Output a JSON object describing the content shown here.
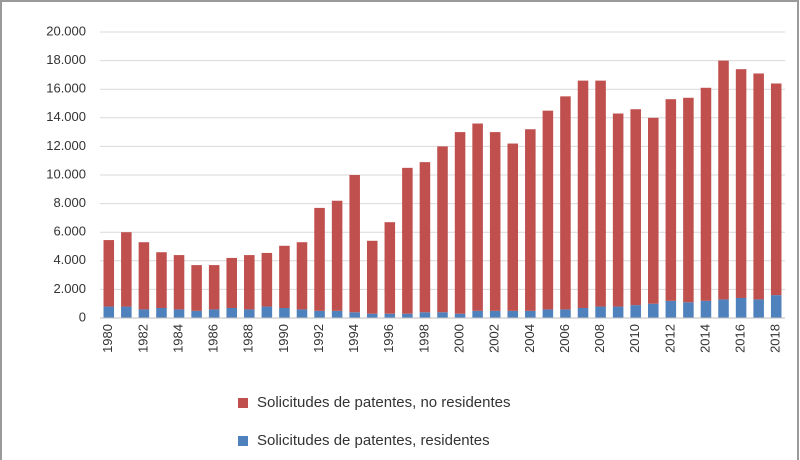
{
  "chart_data": {
    "type": "stacked_bar",
    "categories": [
      "1980",
      null,
      "1982",
      null,
      "1984",
      null,
      "1986",
      null,
      "1988",
      null,
      "1990",
      null,
      "1992",
      null,
      "1994",
      null,
      "1996",
      null,
      "1998",
      null,
      "2000",
      null,
      "2002",
      null,
      "2004",
      null,
      "2006",
      null,
      "2008",
      null,
      "2010",
      null,
      "2012",
      null,
      "2014",
      null,
      "2016",
      null,
      "2018"
    ],
    "series": [
      {
        "name": "Solicitudes de patentes, residentes",
        "color": "#4f81bd",
        "values": [
          800,
          800,
          600,
          700,
          600,
          500,
          600,
          700,
          600,
          800,
          700,
          600,
          500,
          500,
          400,
          300,
          300,
          300,
          400,
          400,
          300,
          500,
          500,
          500,
          500,
          600,
          600,
          700,
          800,
          800,
          900,
          1000,
          1200,
          1100,
          1200,
          1300,
          1400,
          1300,
          1600
        ]
      },
      {
        "name": "Solicitudes de patentes, no residentes",
        "color": "#c0504d",
        "values": [
          4650,
          5200,
          4700,
          3900,
          3800,
          3200,
          3100,
          3500,
          3800,
          3750,
          4350,
          4700,
          7200,
          7700,
          9600,
          5100,
          6400,
          10200,
          10500,
          11600,
          12700,
          13100,
          12500,
          11700,
          12700,
          13900,
          14900,
          15900,
          15800,
          13500,
          13700,
          13000,
          14100,
          14300,
          14900,
          16700,
          16000,
          15800,
          14800
        ]
      }
    ],
    "ylim": [
      0,
      20000
    ],
    "yticks": [
      0,
      {
        "value": 2000,
        "label": "2.000"
      },
      {
        "value": 4000,
        "label": "4.000"
      },
      {
        "value": 6000,
        "label": "6.000"
      },
      {
        "value": 8000,
        "label": "8.000"
      },
      {
        "value": 10000,
        "label": "10.000"
      },
      {
        "value": 12000,
        "label": "12.000"
      },
      {
        "value": 14000,
        "label": "14.000"
      },
      {
        "value": 16000,
        "label": "16.000"
      },
      {
        "value": 18000,
        "label": "18.000"
      },
      {
        "value": 20000,
        "label": "20.000"
      }
    ],
    "grid": true
  }
}
